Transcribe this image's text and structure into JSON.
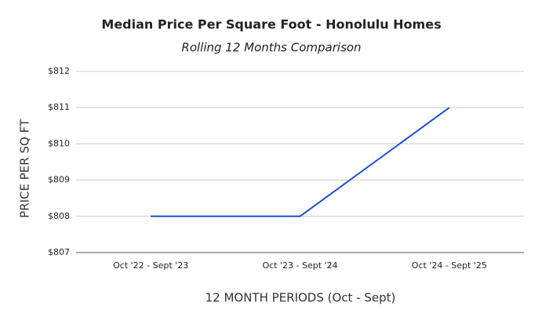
{
  "chart_data": {
    "type": "line",
    "title": "Median Price Per Square Foot - Honolulu Homes",
    "subtitle": "Rolling 12 Months Comparison",
    "x_label": "12 MONTH PERIODS (Oct - Sept)",
    "y_label": "PRICE PER SQ FT",
    "categories": [
      "Oct '22 - Sept '23",
      "Oct '23 - Sept '24",
      "Oct '24 - Sept '25"
    ],
    "series": [
      {
        "name": "Median Price Per Square Foot",
        "color": "#1a4fd6",
        "values": [
          808,
          808,
          811
        ]
      }
    ],
    "ylim": [
      807,
      812
    ],
    "yticks": [
      {
        "value": 807,
        "label": "$807"
      },
      {
        "value": 808,
        "label": "$808"
      },
      {
        "value": 809,
        "label": "$809"
      },
      {
        "value": 810,
        "label": "$810"
      },
      {
        "value": 811,
        "label": "$811"
      },
      {
        "value": 812,
        "label": "$812"
      }
    ],
    "grid": true,
    "legend": false
  }
}
